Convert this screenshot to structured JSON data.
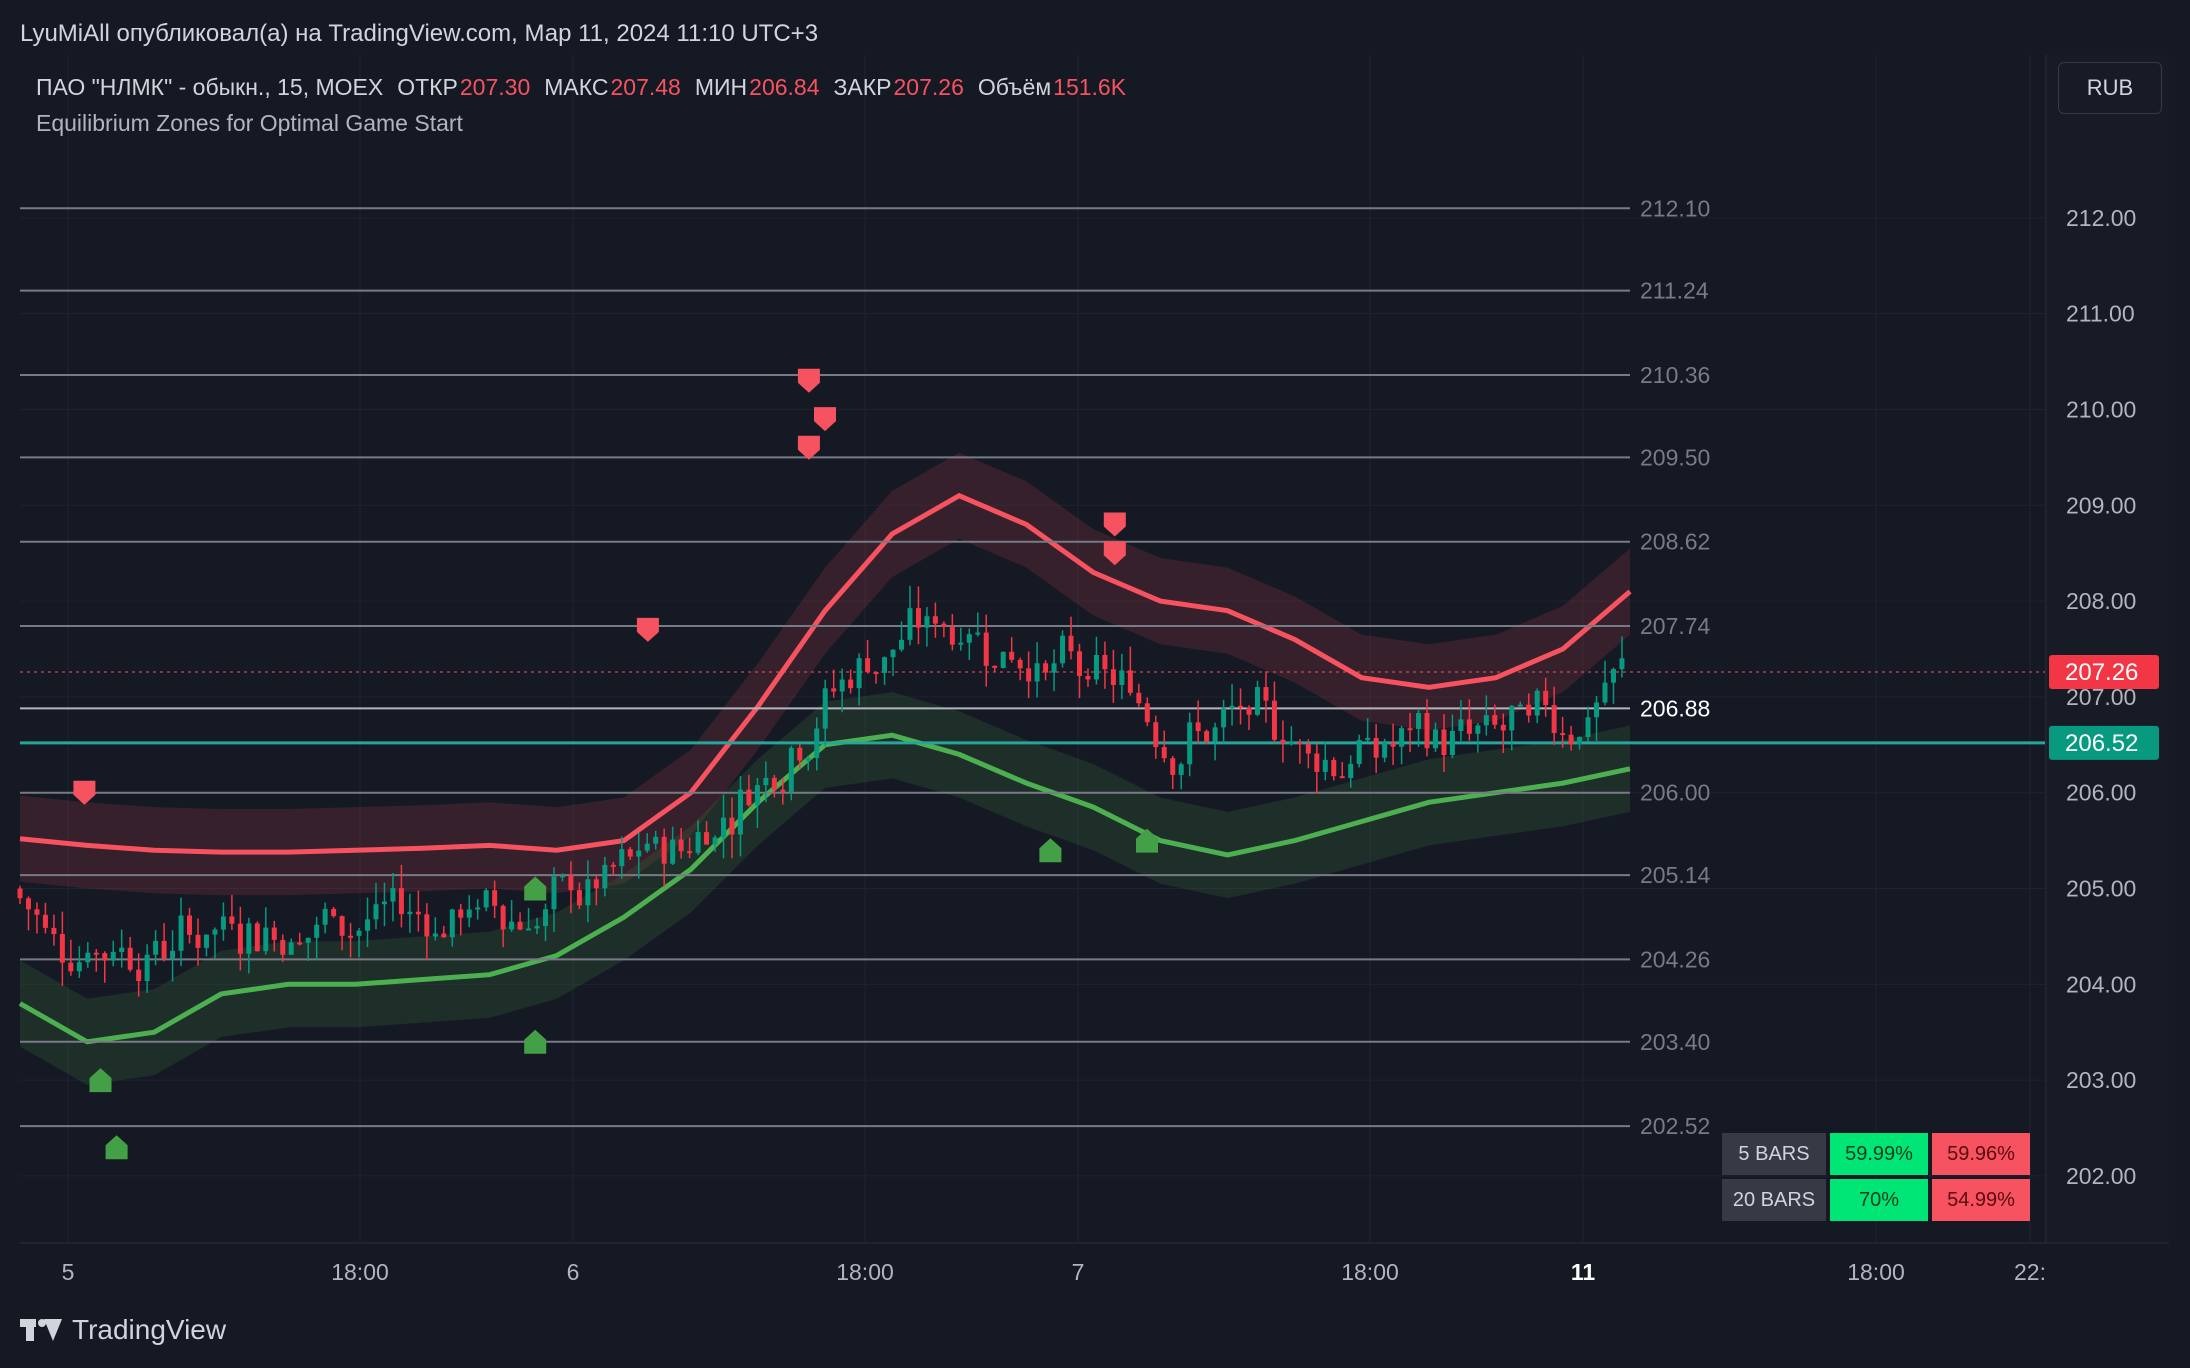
{
  "publish_line": "LyuMiAll опубликовал(а) на TradingView.com, Мар 11, 2024 11:10 UTC+3",
  "symbol": {
    "name": "ПАО \"НЛМК\" - обыкн., 15, MOEX",
    "open_label": "ОТКР",
    "open": "207.30",
    "high_label": "МАКС",
    "high": "207.48",
    "low_label": "МИН",
    "low": "206.84",
    "close_label": "ЗАКР",
    "close": "207.26",
    "volume_label": "Объём",
    "volume": "151.6K"
  },
  "indicator_name": "Equilibrium Zones for Optimal Game Start",
  "currency_button": "RUB",
  "colors": {
    "up": "#089981",
    "down": "#f23645",
    "green_band": "#4caf50",
    "red_band": "#f7525f",
    "hline": "#26a69a"
  },
  "stats": {
    "rows": [
      {
        "label": "5 BARS",
        "up": "59.99%",
        "down": "59.96%"
      },
      {
        "label": "20 BARS",
        "up": "70%",
        "down": "54.99%"
      }
    ]
  },
  "footer_brand": "TradingView",
  "chart_data": {
    "type": "candlestick",
    "y_axis": {
      "ticks": [
        212.0,
        211.0,
        210.0,
        209.0,
        208.0,
        207.0,
        206.0,
        205.0,
        204.0,
        203.0,
        202.0
      ],
      "tick_labels": [
        "212.00",
        "211.00",
        "210.00",
        "209.00",
        "208.00",
        "207.00",
        "206.00",
        "205.00",
        "204.00",
        "203.00",
        "202.00"
      ],
      "range": [
        201.3,
        213.7
      ],
      "last_price": 207.26,
      "last_price_label": "207.26",
      "line_price": 206.52,
      "line_price_label": "206.52"
    },
    "x_axis": {
      "tick_labels": [
        "5",
        "18:00",
        "6",
        "18:00",
        "7",
        "18:00",
        "11",
        "18:00",
        "22:"
      ],
      "bold_label": "11"
    },
    "levels": [
      {
        "price": 212.1,
        "label": "212.10"
      },
      {
        "price": 211.24,
        "label": "211.24"
      },
      {
        "price": 210.36,
        "label": "210.36"
      },
      {
        "price": 209.5,
        "label": "209.50"
      },
      {
        "price": 208.62,
        "label": "208.62"
      },
      {
        "price": 207.74,
        "label": "207.74"
      },
      {
        "price": 206.88,
        "label": "206.88",
        "highlight": true
      },
      {
        "price": 206.0,
        "label": "206.00"
      },
      {
        "price": 205.14,
        "label": "205.14"
      },
      {
        "price": 204.26,
        "label": "204.26"
      },
      {
        "price": 203.4,
        "label": "203.40"
      },
      {
        "price": 202.52,
        "label": "202.52"
      }
    ],
    "upper_band": [
      205.52,
      205.45,
      205.4,
      205.38,
      205.38,
      205.4,
      205.42,
      205.45,
      205.4,
      205.5,
      206.0,
      206.9,
      207.9,
      208.7,
      209.1,
      208.8,
      208.3,
      208.0,
      207.9,
      207.6,
      207.2,
      207.1,
      207.2,
      207.5,
      208.1
    ],
    "lower_band": [
      203.8,
      203.4,
      203.5,
      203.9,
      204.0,
      204.0,
      204.05,
      204.1,
      204.3,
      204.7,
      205.2,
      205.9,
      206.5,
      206.6,
      206.4,
      206.1,
      205.85,
      205.5,
      205.35,
      205.5,
      205.7,
      205.9,
      206.0,
      206.1,
      206.25
    ],
    "buy_signals": [
      [
        0.06,
        202.3
      ],
      [
        0.05,
        203.0
      ],
      [
        0.32,
        203.4
      ],
      [
        0.32,
        205.0
      ],
      [
        0.64,
        205.4
      ],
      [
        0.7,
        205.5
      ]
    ],
    "sell_signals": [
      [
        0.04,
        206.0
      ],
      [
        0.39,
        207.7
      ],
      [
        0.49,
        210.3
      ],
      [
        0.5,
        209.9
      ],
      [
        0.49,
        209.6
      ],
      [
        0.68,
        208.8
      ],
      [
        0.68,
        208.5
      ]
    ]
  }
}
